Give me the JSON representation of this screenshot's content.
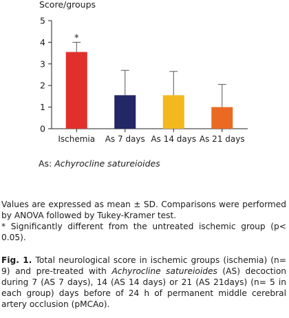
{
  "chart_data": {
    "type": "bar",
    "ylabel": "Score/groups",
    "categories": [
      "Ischemia",
      "As 7 days",
      "As 14 days",
      "As 21 days"
    ],
    "values": [
      3.55,
      1.55,
      1.55,
      1.0
    ],
    "errors": [
      0.45,
      1.15,
      1.1,
      1.05
    ],
    "colors": [
      "#e1302b",
      "#232766",
      "#f3b81d",
      "#ea6a24"
    ],
    "annotations": [
      "*",
      "",
      "",
      ""
    ],
    "ylim": [
      0,
      5
    ],
    "yticks": [
      "0",
      "1",
      "2",
      "3",
      "4",
      "5"
    ]
  },
  "abbrev": {
    "prefix": "As: ",
    "name": "Achyrocline satureioides"
  },
  "notes": {
    "line1": "Values are expressed as mean ± SD. Comparisons were performed by ANOVA followed by Tukey-Kramer test.",
    "line2": "* Significantly different from the untreated ischemic group (p< 0.05)."
  },
  "caption": {
    "label": "Fig. 1.",
    "text1": " Total neurological score in ischemic groups (ischemia) (n= 9) and pre-treated with ",
    "species": "Achyrocline satureioides",
    "text2": " (AS) decoction during 7 (AS 7 days), 14 (AS 14 days) or 21 (AS 21days) (n= 5 in each group) days before of 24 h of permanent middle cerebral artery occlusion (pMCAo)."
  }
}
